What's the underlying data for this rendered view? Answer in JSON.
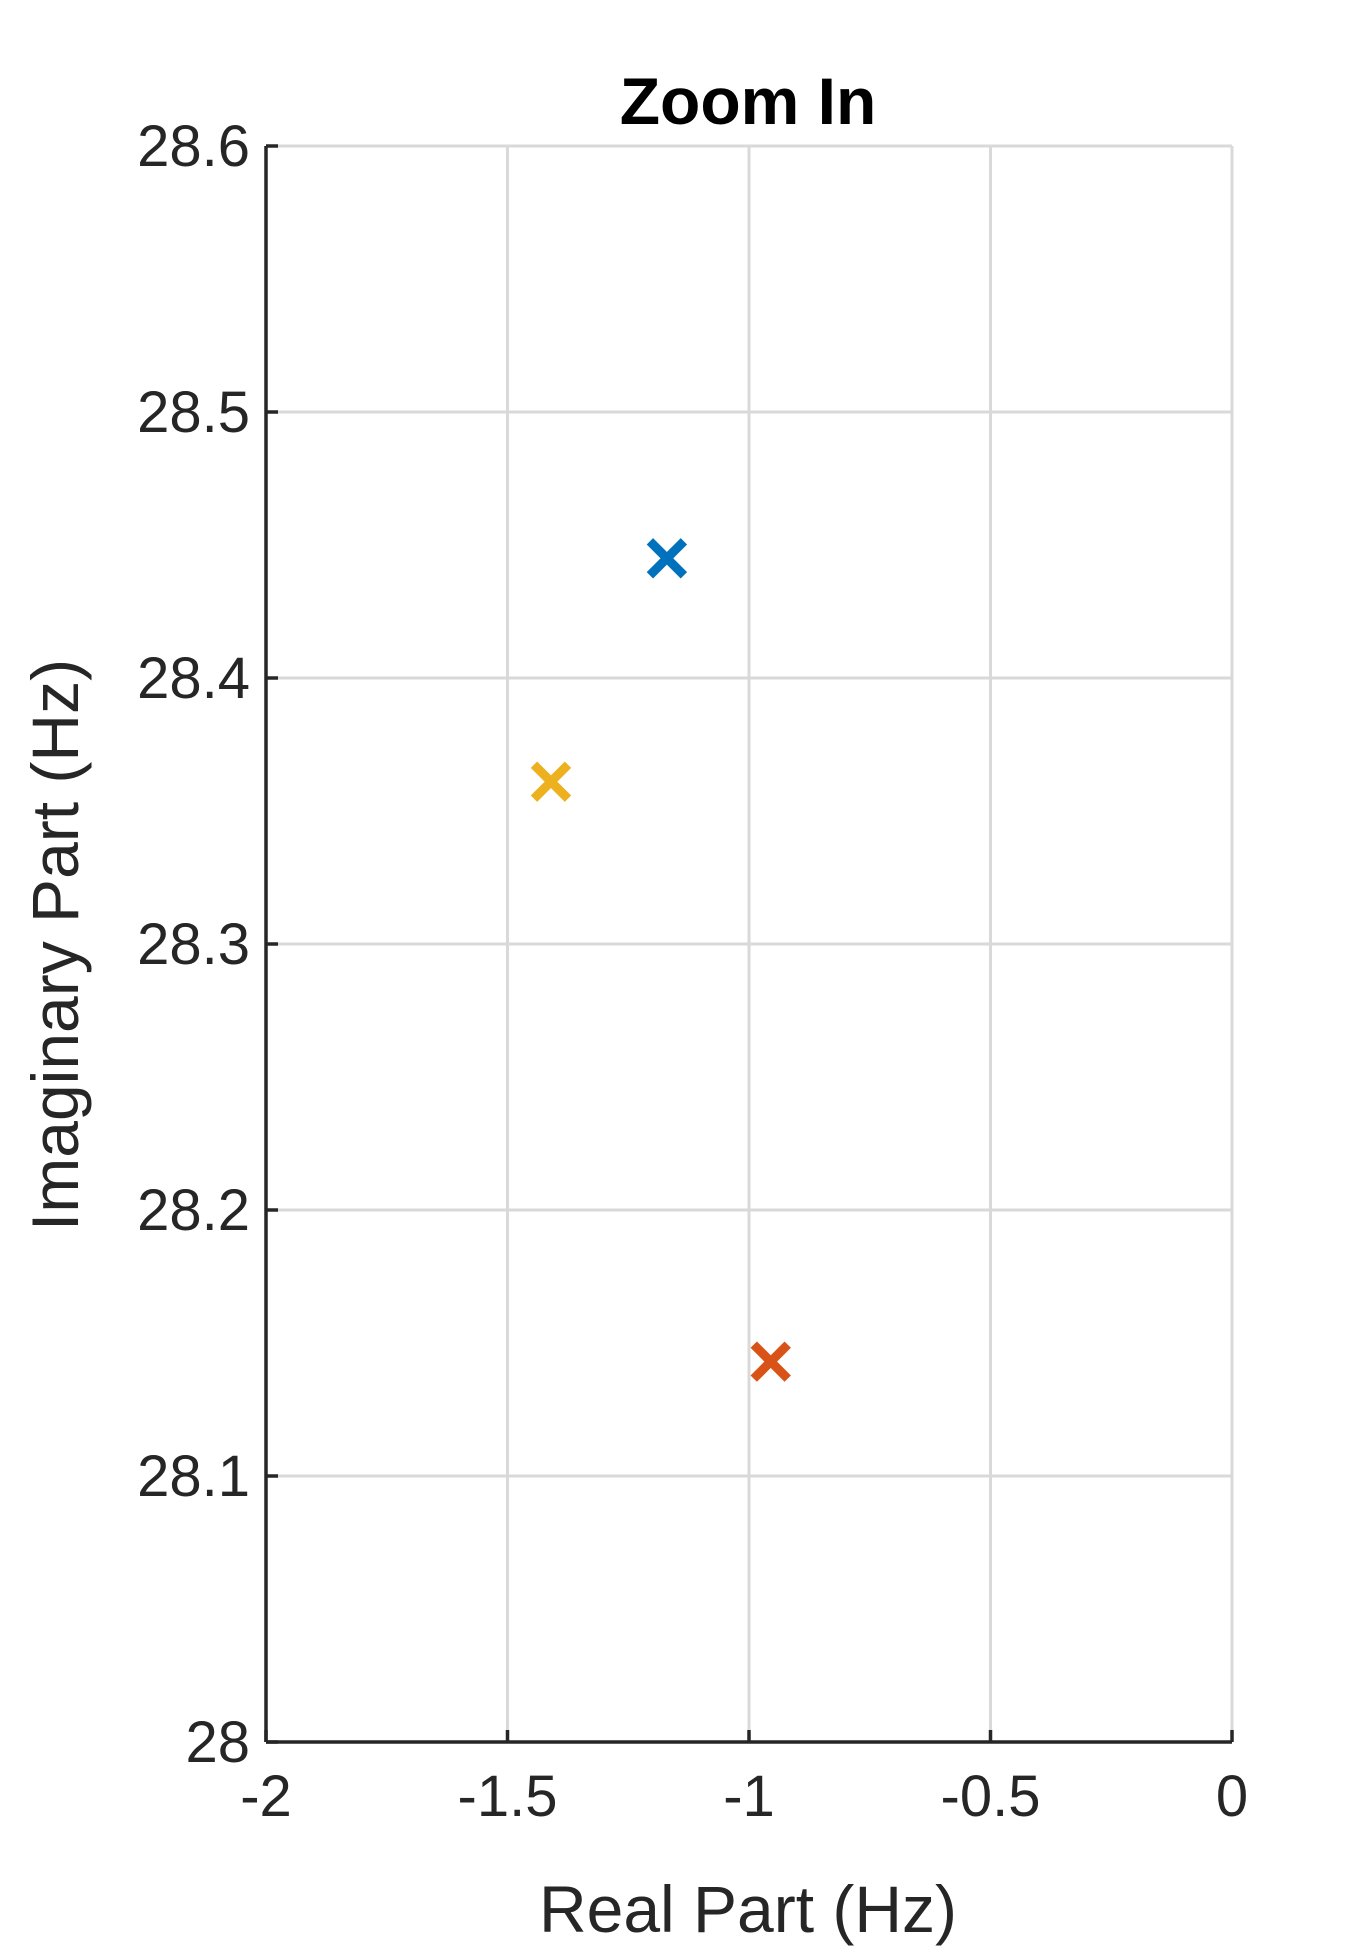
{
  "chart_data": {
    "type": "scatter",
    "title": "Zoom In",
    "xlabel": "Real Part (Hz)",
    "ylabel": "Imaginary Part (Hz)",
    "xlim": [
      -2,
      0
    ],
    "ylim": [
      28,
      28.6
    ],
    "x_ticks": [
      -2,
      -1.5,
      -1,
      -0.5,
      0
    ],
    "x_tick_labels": [
      "-2",
      "-1.5",
      "-1",
      "-0.5",
      "0"
    ],
    "y_ticks": [
      28,
      28.1,
      28.2,
      28.3,
      28.4,
      28.5,
      28.6
    ],
    "y_tick_labels": [
      "28",
      "28.1",
      "28.2",
      "28.3",
      "28.4",
      "28.5",
      "28.6"
    ],
    "grid": true,
    "marker": "x",
    "series": [
      {
        "color": "#0072BD",
        "x": [
          -1.17
        ],
        "y": [
          28.445
        ]
      },
      {
        "color": "#D95319",
        "x": [
          -0.955
        ],
        "y": [
          28.143
        ]
      },
      {
        "color": "#EDB120",
        "x": [
          -1.41
        ],
        "y": [
          28.361
        ]
      }
    ]
  }
}
